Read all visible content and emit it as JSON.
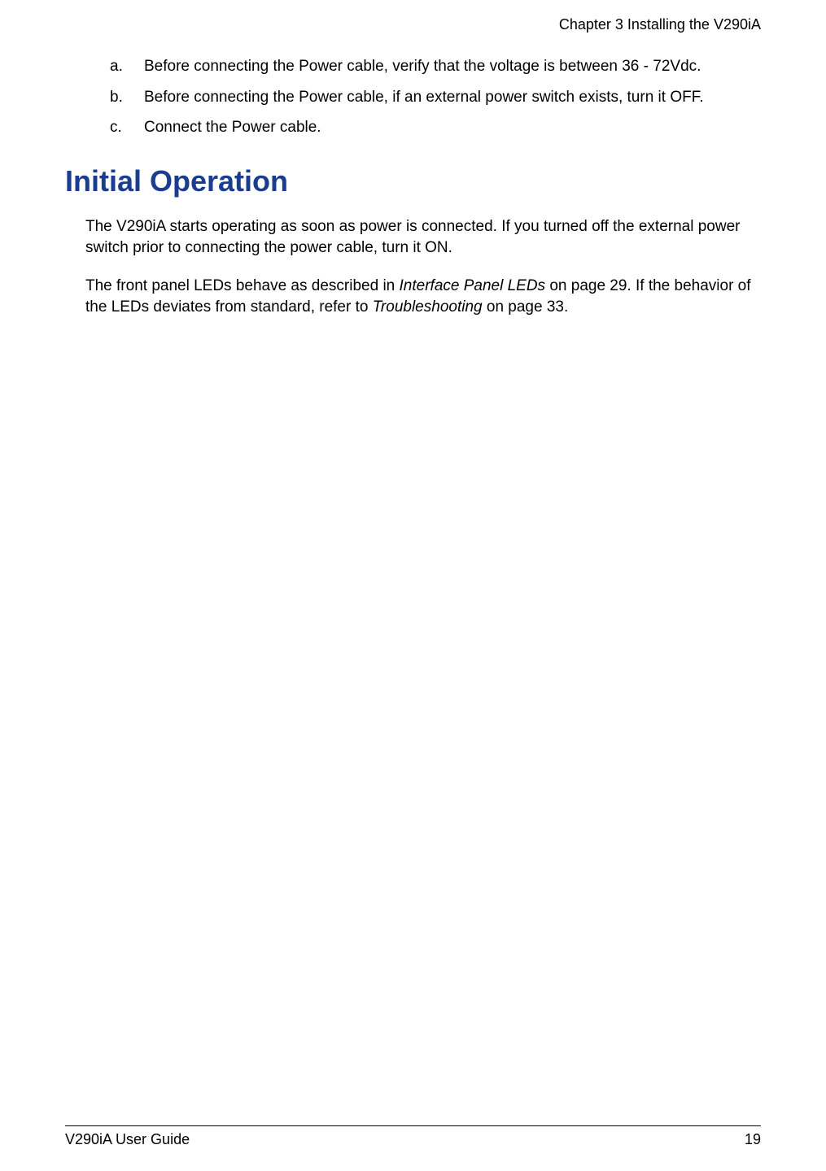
{
  "header": {
    "chapter_title": "Chapter 3  Installing the V290iA"
  },
  "list": {
    "items": [
      {
        "marker": "a.",
        "text": "Before connecting the Power cable, verify that the voltage is between 36 - 72Vdc."
      },
      {
        "marker": "b.",
        "text": "Before connecting the Power cable, if an external power switch exists, turn it OFF."
      },
      {
        "marker": "c.",
        "text": "Connect the Power cable."
      }
    ]
  },
  "section": {
    "heading": "Initial Operation",
    "heading_color": "#1a3d8f"
  },
  "paragraphs": {
    "p1": "The V290iA starts operating as soon as power is connected. If you turned off the external power switch prior to connecting the power cable, turn it ON.",
    "p2_a": "The front panel LEDs behave as described in ",
    "p2_ref1": "Interface Panel LEDs",
    "p2_b": " on page 29. If the behavior of the LEDs deviates from standard, refer to ",
    "p2_ref2": "Troubleshooting",
    "p2_c": " on page 33."
  },
  "footer": {
    "guide_title": "V290iA User Guide",
    "page_number": "19"
  },
  "styles": {
    "body_font_size": 19,
    "heading_font_size": 36,
    "header_font_size": 18,
    "footer_font_size": 18,
    "text_color": "#000000",
    "background_color": "#ffffff",
    "footer_border_color": "#000000"
  }
}
